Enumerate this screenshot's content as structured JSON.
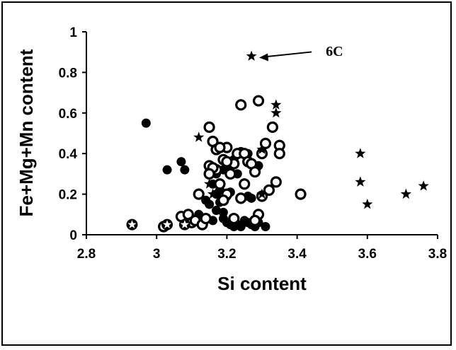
{
  "chart_data": {
    "type": "scatter",
    "title": "",
    "xlabel": "Si content",
    "ylabel": "Fe+Mg+Mn content",
    "xlim": [
      2.8,
      3.8
    ],
    "ylim": [
      0,
      1
    ],
    "xticks": [
      "2.8",
      "3",
      "3.2",
      "3.4",
      "3.6",
      "3.8"
    ],
    "yticks": [
      "0",
      "0.2",
      "0.4",
      "0.6",
      "0.8",
      "1"
    ],
    "grid": false,
    "legend": "none",
    "annotations": [
      {
        "text": "6C",
        "x": 3.27,
        "y": 0.88
      }
    ],
    "series": [
      {
        "marker": "filled-circle",
        "points": [
          [
            2.97,
            0.55
          ],
          [
            3.03,
            0.32
          ],
          [
            3.07,
            0.36
          ],
          [
            3.08,
            0.32
          ],
          [
            3.12,
            0.1
          ],
          [
            3.13,
            0.08
          ],
          [
            3.14,
            0.17
          ],
          [
            3.15,
            0.15
          ],
          [
            3.16,
            0.25
          ],
          [
            3.17,
            0.2
          ],
          [
            3.18,
            0.22
          ],
          [
            3.17,
            0.3
          ],
          [
            3.19,
            0.32
          ],
          [
            3.18,
            0.16
          ],
          [
            3.2,
            0.19
          ],
          [
            3.19,
            0.08
          ],
          [
            3.2,
            0.06
          ],
          [
            3.21,
            0.05
          ],
          [
            3.22,
            0.04
          ],
          [
            3.23,
            0.05
          ],
          [
            3.24,
            0.04
          ],
          [
            3.25,
            0.07
          ],
          [
            3.26,
            0.06
          ],
          [
            3.27,
            0.05
          ],
          [
            3.28,
            0.04
          ],
          [
            3.29,
            0.06
          ],
          [
            3.31,
            0.04
          ],
          [
            3.21,
            0.33
          ],
          [
            3.22,
            0.37
          ],
          [
            3.23,
            0.3
          ],
          [
            3.24,
            0.41
          ],
          [
            3.26,
            0.19
          ],
          [
            3.27,
            0.18
          ],
          [
            3.29,
            0.34
          ],
          [
            3.3,
            0.41
          ],
          [
            3.19,
            0.11
          ],
          [
            3.17,
            0.12
          ],
          [
            3.16,
            0.07
          ],
          [
            3.21,
            0.21
          ],
          [
            3.26,
            0.4
          ]
        ]
      },
      {
        "marker": "open-circle",
        "points": [
          [
            3.02,
            0.04
          ],
          [
            3.07,
            0.09
          ],
          [
            3.09,
            0.1
          ],
          [
            3.1,
            0.06
          ],
          [
            3.11,
            0.07
          ],
          [
            3.12,
            0.2
          ],
          [
            3.13,
            0.05
          ],
          [
            3.14,
            0.08
          ],
          [
            3.15,
            0.34
          ],
          [
            3.15,
            0.53
          ],
          [
            3.16,
            0.46
          ],
          [
            3.17,
            0.42
          ],
          [
            3.17,
            0.32
          ],
          [
            3.18,
            0.25
          ],
          [
            3.19,
            0.37
          ],
          [
            3.2,
            0.43
          ],
          [
            3.2,
            0.2
          ],
          [
            3.21,
            0.3
          ],
          [
            3.22,
            0.35
          ],
          [
            3.23,
            0.4
          ],
          [
            3.24,
            0.64
          ],
          [
            3.25,
            0.4
          ],
          [
            3.25,
            0.25
          ],
          [
            3.26,
            0.36
          ],
          [
            3.27,
            0.35
          ],
          [
            3.28,
            0.31
          ],
          [
            3.29,
            0.66
          ],
          [
            3.29,
            0.1
          ],
          [
            3.3,
            0.4
          ],
          [
            3.31,
            0.45
          ],
          [
            3.32,
            0.22
          ],
          [
            3.33,
            0.53
          ],
          [
            3.34,
            0.26
          ],
          [
            3.35,
            0.44
          ],
          [
            3.35,
            0.4
          ],
          [
            3.41,
            0.2
          ],
          [
            3.2,
            0.36
          ],
          [
            3.18,
            0.43
          ],
          [
            3.16,
            0.33
          ],
          [
            3.19,
            0.17
          ],
          [
            3.22,
            0.08
          ],
          [
            3.24,
            0.18
          ],
          [
            3.28,
            0.07
          ],
          [
            3.3,
            0.19
          ],
          [
            3.15,
            0.3
          ]
        ]
      },
      {
        "marker": "star",
        "points": [
          [
            3.27,
            0.88
          ],
          [
            3.34,
            0.64
          ],
          [
            3.34,
            0.6
          ],
          [
            3.12,
            0.48
          ],
          [
            3.3,
            0.42
          ],
          [
            3.3,
            0.2
          ],
          [
            3.16,
            0.2
          ],
          [
            3.15,
            0.25
          ],
          [
            3.58,
            0.4
          ],
          [
            3.58,
            0.26
          ],
          [
            3.6,
            0.15
          ],
          [
            3.71,
            0.2
          ],
          [
            3.76,
            0.24
          ]
        ]
      },
      {
        "marker": "star-in-circle",
        "points": [
          [
            2.93,
            0.05
          ],
          [
            3.03,
            0.05
          ],
          [
            3.08,
            0.05
          ]
        ]
      }
    ]
  }
}
